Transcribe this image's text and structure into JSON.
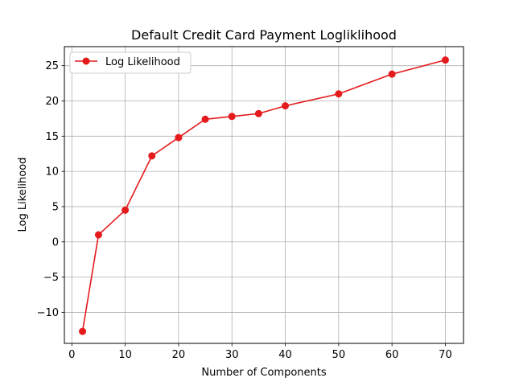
{
  "chart_data": {
    "type": "line",
    "title": "Default Credit Card Payment Logliklihood",
    "xlabel": "Number of Components",
    "ylabel": "Log Likelihood",
    "xlim": [
      -1.4,
      73.4
    ],
    "ylim": [
      -14.4,
      27.7
    ],
    "xticks": [
      0,
      10,
      20,
      30,
      40,
      50,
      60,
      70
    ],
    "yticks": [
      -10,
      -5,
      0,
      5,
      10,
      15,
      20,
      25
    ],
    "grid": true,
    "legend_position": "top-left",
    "series": [
      {
        "name": "Log Likelihood",
        "color": "#e41a1c",
        "marker": "circle",
        "x": [
          2,
          5,
          10,
          15,
          20,
          25,
          30,
          35,
          40,
          50,
          60,
          70
        ],
        "y": [
          -12.7,
          1.0,
          4.5,
          12.2,
          14.8,
          17.4,
          17.8,
          18.2,
          19.3,
          21.0,
          23.8,
          25.8
        ]
      }
    ]
  }
}
